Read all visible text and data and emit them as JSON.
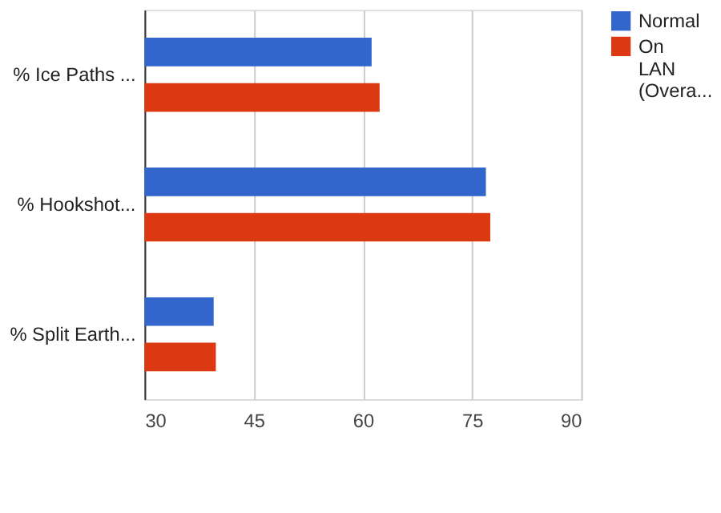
{
  "chart_data": {
    "type": "bar",
    "orientation": "horizontal",
    "categories": [
      "% Ice Paths ...",
      "% Hookshot...",
      "% Split Earth..."
    ],
    "series": [
      {
        "name": "Normal",
        "color": "#3366cc",
        "values": [
          61.2,
          76.9,
          39.5
        ]
      },
      {
        "name": "On LAN (Overa...",
        "color": "#dc3912",
        "values": [
          62.3,
          77.5,
          39.8
        ]
      }
    ],
    "xlim": [
      30,
      90
    ],
    "xticks": [
      30,
      45,
      60,
      75,
      90
    ],
    "grid": "x",
    "legend": "top right"
  }
}
